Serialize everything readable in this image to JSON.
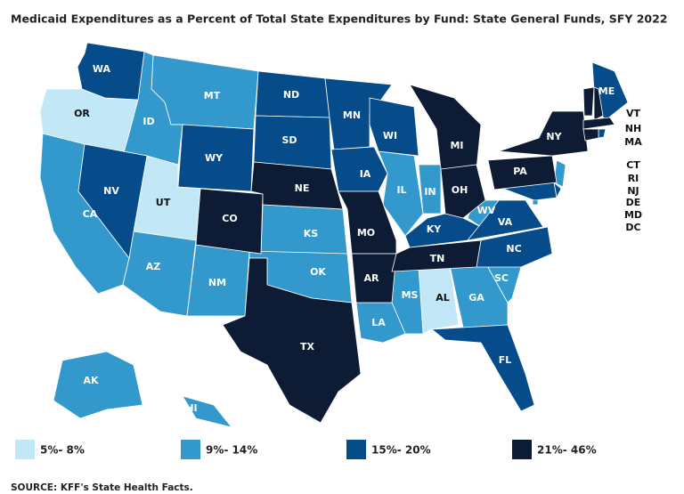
{
  "title": "Medicaid Expenditures as a Percent of Total State Expenditures by Fund: State General Funds, SFY 2022",
  "legend": [
    {
      "label": "5%- 8%",
      "color": "#c2e8f7",
      "states": [
        "OR",
        "UT",
        "AL"
      ]
    },
    {
      "label": "9%- 14%",
      "color": "#3399cc",
      "states": [
        "MT",
        "ID",
        "CA",
        "AZ",
        "NM",
        "KS",
        "OK",
        "IL",
        "IN",
        "MS",
        "LA",
        "GA",
        "SC",
        "WV",
        "NJ",
        "DC",
        "AK",
        "HI"
      ]
    },
    {
      "label": "15%- 20%",
      "color": "#064b8a",
      "states": [
        "WA",
        "NV",
        "WY",
        "ND",
        "SD",
        "MN",
        "IA",
        "WI",
        "KY",
        "VA",
        "NC",
        "FL",
        "ME",
        "RI",
        "DE",
        "MD"
      ]
    },
    {
      "label": "21%- 46%",
      "color": "#0d1b34",
      "states": [
        "CO",
        "NE",
        "TX",
        "MO",
        "AR",
        "TN",
        "MI",
        "OH",
        "PA",
        "NY",
        "VT",
        "NH",
        "MA",
        "CT"
      ]
    }
  ],
  "source": "SOURCE: KFF's State Health Facts."
}
